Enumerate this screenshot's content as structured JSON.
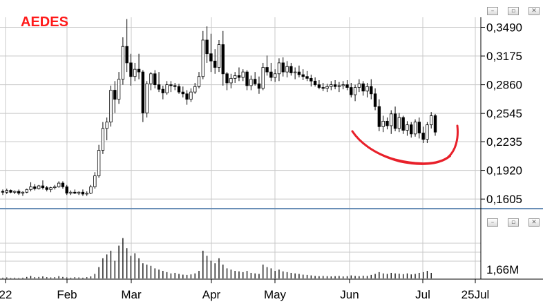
{
  "title": "AEDES",
  "colors": {
    "title": "#ff1a1a",
    "candle": "#000000",
    "volume": "#000000",
    "grid": "#c8c8c8",
    "separator": "#6a8fb7",
    "annotation": "#e8202a"
  },
  "window_buttons": {
    "minimize": "–",
    "restore": "▫",
    "close": "✕"
  },
  "chart_data": [
    {
      "type": "candlestick",
      "title": "AEDES",
      "y_ticks": [
        "0,3490",
        "0,3175",
        "0,2860",
        "0,2545",
        "0,2235",
        "0,1920",
        "0,1605"
      ],
      "ylim": [
        0.15,
        0.36
      ],
      "x_ticks": [
        "22",
        "Feb",
        "Mar",
        "Apr",
        "May",
        "Jun",
        "Jul",
        "25Jul"
      ],
      "grid": true,
      "series": [
        {
          "ohlc": [
            [
              0.169,
              0.171,
              0.165,
              0.168
            ],
            [
              0.168,
              0.172,
              0.166,
              0.17
            ],
            [
              0.17,
              0.171,
              0.167,
              0.168
            ],
            [
              0.168,
              0.17,
              0.166,
              0.169
            ],
            [
              0.169,
              0.171,
              0.165,
              0.167
            ],
            [
              0.167,
              0.169,
              0.164,
              0.168
            ],
            [
              0.168,
              0.172,
              0.167,
              0.171
            ],
            [
              0.171,
              0.179,
              0.169,
              0.174
            ],
            [
              0.174,
              0.177,
              0.17,
              0.172
            ],
            [
              0.172,
              0.176,
              0.171,
              0.175
            ],
            [
              0.175,
              0.181,
              0.171,
              0.173
            ],
            [
              0.173,
              0.175,
              0.169,
              0.171
            ],
            [
              0.171,
              0.174,
              0.168,
              0.173
            ],
            [
              0.173,
              0.176,
              0.171,
              0.174
            ],
            [
              0.174,
              0.18,
              0.173,
              0.178
            ],
            [
              0.178,
              0.18,
              0.172,
              0.174
            ],
            [
              0.174,
              0.176,
              0.165,
              0.167
            ],
            [
              0.167,
              0.17,
              0.165,
              0.168
            ],
            [
              0.168,
              0.171,
              0.166,
              0.167
            ],
            [
              0.167,
              0.169,
              0.165,
              0.168
            ],
            [
              0.168,
              0.171,
              0.164,
              0.166
            ],
            [
              0.166,
              0.169,
              0.164,
              0.167
            ],
            [
              0.167,
              0.176,
              0.166,
              0.174
            ],
            [
              0.174,
              0.19,
              0.172,
              0.186
            ],
            [
              0.186,
              0.22,
              0.184,
              0.214
            ],
            [
              0.214,
              0.245,
              0.21,
              0.238
            ],
            [
              0.238,
              0.25,
              0.225,
              0.245
            ],
            [
              0.245,
              0.285,
              0.24,
              0.28
            ],
            [
              0.28,
              0.29,
              0.255,
              0.27
            ],
            [
              0.27,
              0.3,
              0.265,
              0.292
            ],
            [
              0.292,
              0.338,
              0.286,
              0.328
            ],
            [
              0.328,
              0.358,
              0.3,
              0.31
            ],
            [
              0.31,
              0.32,
              0.285,
              0.295
            ],
            [
              0.295,
              0.31,
              0.29,
              0.303
            ],
            [
              0.303,
              0.32,
              0.292,
              0.3
            ],
            [
              0.3,
              0.302,
              0.245,
              0.255
            ],
            [
              0.255,
              0.29,
              0.25,
              0.287
            ],
            [
              0.287,
              0.3,
              0.28,
              0.298
            ],
            [
              0.298,
              0.302,
              0.282,
              0.286
            ],
            [
              0.286,
              0.3,
              0.278,
              0.281
            ],
            [
              0.281,
              0.285,
              0.27,
              0.277
            ],
            [
              0.277,
              0.29,
              0.275,
              0.286
            ],
            [
              0.286,
              0.29,
              0.278,
              0.285
            ],
            [
              0.285,
              0.288,
              0.28,
              0.284
            ],
            [
              0.284,
              0.287,
              0.276,
              0.278
            ],
            [
              0.278,
              0.284,
              0.272,
              0.276
            ],
            [
              0.276,
              0.28,
              0.264,
              0.27
            ],
            [
              0.27,
              0.282,
              0.267,
              0.278
            ],
            [
              0.278,
              0.288,
              0.276,
              0.284
            ],
            [
              0.284,
              0.3,
              0.282,
              0.295
            ],
            [
              0.295,
              0.345,
              0.292,
              0.335
            ],
            [
              0.335,
              0.35,
              0.31,
              0.32
            ],
            [
              0.32,
              0.342,
              0.3,
              0.312
            ],
            [
              0.312,
              0.325,
              0.298,
              0.305
            ],
            [
              0.305,
              0.335,
              0.3,
              0.33
            ],
            [
              0.33,
              0.345,
              0.285,
              0.298
            ],
            [
              0.298,
              0.3,
              0.28,
              0.288
            ],
            [
              0.288,
              0.298,
              0.282,
              0.293
            ],
            [
              0.293,
              0.3,
              0.288,
              0.296
            ],
            [
              0.296,
              0.305,
              0.29,
              0.294
            ],
            [
              0.294,
              0.303,
              0.29,
              0.3
            ],
            [
              0.3,
              0.302,
              0.28,
              0.285
            ],
            [
              0.285,
              0.296,
              0.28,
              0.292
            ],
            [
              0.292,
              0.3,
              0.285,
              0.287
            ],
            [
              0.287,
              0.295,
              0.276,
              0.282
            ],
            [
              0.282,
              0.31,
              0.28,
              0.305
            ],
            [
              0.305,
              0.318,
              0.296,
              0.3
            ],
            [
              0.3,
              0.31,
              0.29,
              0.294
            ],
            [
              0.294,
              0.303,
              0.289,
              0.298
            ],
            [
              0.298,
              0.315,
              0.29,
              0.31
            ],
            [
              0.31,
              0.316,
              0.295,
              0.3
            ],
            [
              0.3,
              0.312,
              0.294,
              0.306
            ],
            [
              0.306,
              0.31,
              0.296,
              0.299
            ],
            [
              0.299,
              0.305,
              0.292,
              0.3
            ],
            [
              0.3,
              0.307,
              0.294,
              0.297
            ],
            [
              0.297,
              0.303,
              0.291,
              0.295
            ],
            [
              0.295,
              0.301,
              0.29,
              0.293
            ],
            [
              0.293,
              0.297,
              0.284,
              0.29
            ],
            [
              0.29,
              0.294,
              0.284,
              0.286
            ],
            [
              0.286,
              0.291,
              0.281,
              0.283
            ],
            [
              0.283,
              0.288,
              0.279,
              0.282
            ],
            [
              0.282,
              0.287,
              0.278,
              0.284
            ],
            [
              0.284,
              0.29,
              0.28,
              0.286
            ],
            [
              0.286,
              0.291,
              0.281,
              0.284
            ],
            [
              0.284,
              0.289,
              0.278,
              0.285
            ],
            [
              0.285,
              0.29,
              0.281,
              0.286
            ],
            [
              0.286,
              0.291,
              0.28,
              0.283
            ],
            [
              0.283,
              0.288,
              0.272,
              0.275
            ],
            [
              0.275,
              0.286,
              0.268,
              0.283
            ],
            [
              0.283,
              0.292,
              0.278,
              0.287
            ],
            [
              0.287,
              0.29,
              0.274,
              0.279
            ],
            [
              0.279,
              0.288,
              0.272,
              0.284
            ],
            [
              0.284,
              0.292,
              0.27,
              0.276
            ],
            [
              0.276,
              0.282,
              0.258,
              0.262
            ],
            [
              0.262,
              0.27,
              0.235,
              0.24
            ],
            [
              0.24,
              0.252,
              0.234,
              0.246
            ],
            [
              0.246,
              0.25,
              0.237,
              0.241
            ],
            [
              0.241,
              0.258,
              0.232,
              0.254
            ],
            [
              0.254,
              0.262,
              0.235,
              0.238
            ],
            [
              0.238,
              0.255,
              0.234,
              0.25
            ],
            [
              0.25,
              0.252,
              0.232,
              0.236
            ],
            [
              0.236,
              0.246,
              0.23,
              0.242
            ],
            [
              0.242,
              0.245,
              0.228,
              0.232
            ],
            [
              0.232,
              0.248,
              0.229,
              0.245
            ],
            [
              0.245,
              0.25,
              0.227,
              0.233
            ],
            [
              0.233,
              0.24,
              0.222,
              0.226
            ],
            [
              0.226,
              0.245,
              0.222,
              0.242
            ],
            [
              0.242,
              0.256,
              0.238,
              0.252
            ],
            [
              0.252,
              0.254,
              0.23,
              0.234
            ]
          ],
          "volume_axis_label": "1,66M",
          "volume": [
            0.03,
            0.04,
            0.02,
            0.03,
            0.02,
            0.03,
            0.06,
            0.1,
            0.05,
            0.06,
            0.08,
            0.05,
            0.04,
            0.05,
            0.09,
            0.06,
            0.04,
            0.03,
            0.05,
            0.04,
            0.03,
            0.05,
            0.08,
            0.18,
            0.45,
            0.8,
            0.95,
            1.1,
            0.7,
            1.3,
            1.6,
            1.2,
            0.9,
            1.0,
            0.8,
            0.6,
            0.55,
            0.5,
            0.4,
            0.35,
            0.3,
            0.25,
            0.2,
            0.22,
            0.18,
            0.15,
            0.14,
            0.16,
            0.2,
            0.3,
            1.1,
            0.9,
            0.7,
            0.6,
            0.8,
            0.55,
            0.4,
            0.35,
            0.3,
            0.28,
            0.25,
            0.3,
            0.22,
            0.2,
            0.18,
            0.55,
            0.45,
            0.4,
            0.3,
            0.35,
            0.28,
            0.25,
            0.22,
            0.2,
            0.18,
            0.15,
            0.14,
            0.12,
            0.1,
            0.09,
            0.1,
            0.09,
            0.08,
            0.09,
            0.1,
            0.08,
            0.09,
            0.12,
            0.1,
            0.09,
            0.11,
            0.1,
            0.14,
            0.18,
            0.25,
            0.2,
            0.18,
            0.22,
            0.2,
            0.19,
            0.17,
            0.2,
            0.16,
            0.18,
            0.22,
            0.25,
            0.3,
            0.22
          ]
        }
      ]
    }
  ]
}
